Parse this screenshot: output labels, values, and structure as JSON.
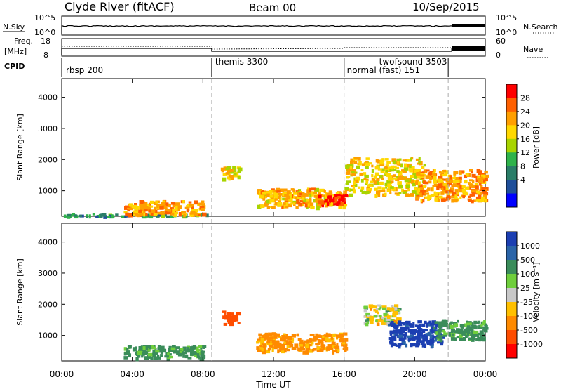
{
  "header": {
    "station": "Clyde River (fitACF)",
    "beam": "Beam 00",
    "date": "10/Sep/2015"
  },
  "panels": {
    "nsky_label": "N.Sky",
    "nsky_ticks": [
      "10^5",
      "10^0"
    ],
    "nsearch_label": "N.Search",
    "nsearch_ticks": [
      "10^5",
      "10^0"
    ],
    "freq_label": "Freq.",
    "freq_unit": "[MHz]",
    "freq_ticks": [
      "18",
      "8"
    ],
    "nave_label": "Nave",
    "nave_ticks": [
      "60",
      "0"
    ],
    "cpid_label": "CPID"
  },
  "cpid_segments": [
    {
      "name": "rbsp 200",
      "start_h": 0.0
    },
    {
      "name": "themis 3300",
      "start_h": 8.5
    },
    {
      "name": "normal (fast) 151",
      "start_h": 16.0
    },
    {
      "name": "twofsound 3503",
      "start_h": 16.0
    },
    {
      "name": "",
      "start_h": 21.9
    }
  ],
  "time_axis": {
    "label": "Time UT",
    "ticks": [
      "00:00",
      "04:00",
      "08:00",
      "12:00",
      "16:00",
      "20:00",
      "00:00"
    ],
    "tick_hours": [
      0,
      4,
      8,
      12,
      16,
      20,
      24
    ],
    "range_h": [
      0,
      24
    ]
  },
  "range_axis": {
    "label": "Slant Range [km]",
    "ticks": [
      "4000",
      "3000",
      "2000",
      "1000"
    ],
    "tick_values": [
      4000,
      3000,
      2000,
      1000
    ],
    "range_km": [
      180,
      4600
    ]
  },
  "power_scale": {
    "label": "Power [dB]",
    "ticks": [
      "28",
      "24",
      "20",
      "16",
      "12",
      "8",
      "4"
    ],
    "colors": [
      "#ff0000",
      "#ff6000",
      "#ff9f00",
      "#ffd800",
      "#a8d400",
      "#2fb34b",
      "#2a7d68",
      "#1f4f9a",
      "#0000ff"
    ]
  },
  "velocity_scale": {
    "label": "Velocity [m s⁻¹]",
    "ticks": [
      "1000",
      "500",
      "100",
      "25",
      "-25",
      "-100",
      "-500",
      "-1000"
    ],
    "colors": [
      "#1c3fb2",
      "#2a64a8",
      "#3a8c5a",
      "#6fce3c",
      "#c8c8c8",
      "#ffc000",
      "#ff8a00",
      "#ff4d00",
      "#ff0000"
    ]
  },
  "chart_data": {
    "type": "heatmap",
    "x_unit": "hours UT",
    "y_unit": "km",
    "power_echo_regions": [
      {
        "t0": 0.0,
        "t1": 8.5,
        "r0": 200,
        "r1": 280,
        "power_db": 8
      },
      {
        "t0": 3.5,
        "t1": 8.0,
        "r0": 250,
        "r1": 700,
        "power_db": 22
      },
      {
        "t0": 9.0,
        "t1": 10.0,
        "r0": 1400,
        "r1": 1800,
        "power_db": 18
      },
      {
        "t0": 11.0,
        "t1": 16.0,
        "r0": 500,
        "r1": 1100,
        "power_db": 20
      },
      {
        "t0": 14.5,
        "t1": 16.0,
        "r0": 600,
        "r1": 900,
        "power_db": 30
      },
      {
        "t0": 16.0,
        "t1": 20.5,
        "r0": 900,
        "r1": 2100,
        "power_db": 18
      },
      {
        "t0": 20.0,
        "t1": 24.0,
        "r0": 700,
        "r1": 1700,
        "power_db": 22
      }
    ],
    "velocity_echo_regions": [
      {
        "t0": 3.5,
        "t1": 8.0,
        "r0": 300,
        "r1": 700,
        "velocity_ms": 100
      },
      {
        "t0": 9.0,
        "t1": 10.0,
        "r0": 1400,
        "r1": 1800,
        "velocity_ms": -500
      },
      {
        "t0": 11.0,
        "t1": 16.0,
        "r0": 500,
        "r1": 1100,
        "velocity_ms": -100
      },
      {
        "t0": 17.0,
        "t1": 19.0,
        "r0": 1400,
        "r1": 2000,
        "velocity_ms": 0
      },
      {
        "t0": 18.5,
        "t1": 21.5,
        "r0": 700,
        "r1": 1500,
        "velocity_ms": 800
      },
      {
        "t0": 21.0,
        "t1": 24.0,
        "r0": 900,
        "r1": 1500,
        "velocity_ms": 100
      }
    ]
  }
}
